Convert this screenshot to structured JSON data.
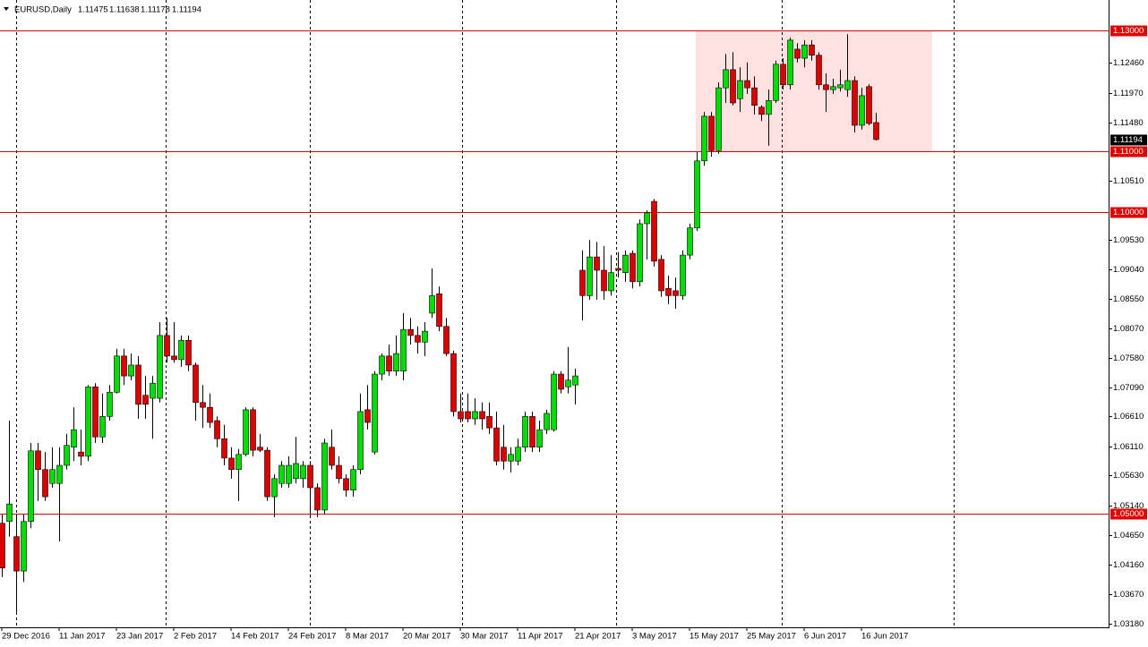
{
  "chart_data": {
    "type": "candlestick",
    "title": "EURUSD,Daily",
    "categories": [
      "29 Dec 2016",
      null,
      null,
      null,
      null,
      null,
      null,
      null,
      "11 Jan 2017",
      null,
      null,
      null,
      null,
      null,
      null,
      null,
      "23 Jan 2017",
      null,
      null,
      null,
      null,
      null,
      null,
      null,
      "2 Feb 2017",
      null,
      null,
      null,
      null,
      null,
      null,
      null,
      "14 Feb 2017",
      null,
      null,
      null,
      null,
      null,
      null,
      null,
      "24 Feb 2017",
      null,
      null,
      null,
      null,
      null,
      null,
      null,
      "8 Mar 2017",
      null,
      null,
      null,
      null,
      null,
      null,
      null,
      "20 Mar 2017",
      null,
      null,
      null,
      null,
      null,
      null,
      null,
      "30 Mar 2017",
      null,
      null,
      null,
      null,
      null,
      null,
      null,
      "11 Apr 2017",
      null,
      null,
      null,
      null,
      null,
      null,
      null,
      "21 Apr 2017",
      null,
      null,
      null,
      null,
      null,
      null,
      null,
      "3 May 2017",
      null,
      null,
      null,
      null,
      null,
      null,
      null,
      "15 May 2017",
      null,
      null,
      null,
      null,
      null,
      null,
      null,
      "25 May 2017",
      null,
      null,
      null,
      null,
      null,
      null,
      null,
      "6 Jun 2017",
      null,
      null,
      null,
      null,
      null,
      null,
      null,
      "16 Jun 2017",
      null,
      null
    ],
    "open": [
      1.0484,
      1.0487,
      1.0462,
      1.0405,
      1.0487,
      1.0604,
      1.0573,
      1.055,
      1.055,
      1.058,
      1.061,
      1.0602,
      1.0595,
      1.071,
      1.0627,
      1.0661,
      1.0701,
      1.0761,
      1.0728,
      1.0746,
      1.0696,
      1.0691,
      1.0691,
      1.0795,
      1.0761,
      1.0755,
      1.0787,
      1.0746,
      1.0684,
      1.0676,
      1.0654,
      1.0624,
      1.0592,
      1.0573,
      1.0598,
      1.0672,
      1.061,
      1.0605,
      1.0528,
      1.055,
      1.055,
      1.0558,
      1.0558,
      1.058,
      1.0543,
      1.0506,
      1.061,
      1.058,
      1.0558,
      1.0539,
      1.0573,
      1.0672,
      1.0602,
      1.0731,
      1.0761,
      1.0736,
      1.0736,
      1.0805,
      1.0795,
      1.0784,
      1.0832,
      1.0864,
      1.081,
      1.0765,
      1.0669,
      1.0669,
      1.0657,
      1.0669,
      1.0661,
      1.0642,
      1.061,
      1.0587,
      1.0587,
      1.061,
      1.0661,
      1.061,
      1.0639,
      1.0639,
      1.0731,
      1.071,
      1.0713,
      1.0903,
      1.0861,
      1.0925,
      1.0903,
      1.0869,
      1.0906,
      1.0899,
      1.0931,
      1.0884,
      1.098,
      1.1017,
      1.0921,
      1.0873,
      1.0869,
      1.0861,
      1.0928,
      1.0973,
      1.1084,
      1.1158,
      1.1101,
      1.1205,
      1.1235,
      1.1187,
      1.1217,
      1.1205,
      1.1173,
      1.1161,
      1.1184,
      1.1244,
      1.121,
      1.1269,
      1.1254,
      1.1276,
      1.1259,
      1.121,
      1.1202,
      1.1205,
      1.1202,
      1.1217,
      1.1143,
      1.1207,
      1.11475
    ],
    "high": [
      1.0499,
      1.0654,
      1.0499,
      1.0499,
      1.0617,
      1.0617,
      1.0602,
      1.061,
      1.061,
      1.0632,
      1.0676,
      1.0639,
      1.0713,
      1.0716,
      1.0699,
      1.0713,
      1.0773,
      1.0773,
      1.0765,
      1.0761,
      1.0728,
      1.0728,
      1.0817,
      1.0824,
      1.0817,
      1.0795,
      1.0795,
      1.075,
      1.0713,
      1.0699,
      1.0661,
      1.0647,
      1.061,
      1.0607,
      1.0676,
      1.0676,
      1.0632,
      1.061,
      1.0565,
      1.0587,
      1.0595,
      1.0627,
      1.0587,
      1.0587,
      1.055,
      1.0624,
      1.0639,
      1.0595,
      1.0565,
      1.058,
      1.0699,
      1.0713,
      1.0736,
      1.0765,
      1.078,
      1.0795,
      1.0832,
      1.0824,
      1.081,
      1.0817,
      1.0906,
      1.0876,
      1.0824,
      1.077,
      1.0699,
      1.0699,
      1.0691,
      1.0684,
      1.0684,
      1.0669,
      1.0647,
      1.061,
      1.0624,
      1.0669,
      1.0669,
      1.0654,
      1.0672,
      1.0736,
      1.0736,
      1.0776,
      1.074,
      1.0936,
      1.0953,
      1.095,
      1.0943,
      1.0928,
      1.0933,
      1.0936,
      1.0936,
      1.0987,
      1.1002,
      1.1021,
      1.0928,
      1.0894,
      1.0891,
      1.0936,
      1.098,
      1.1099,
      1.1165,
      1.1165,
      1.1214,
      1.1261,
      1.1264,
      1.1239,
      1.1247,
      1.1224,
      1.1176,
      1.1202,
      1.125,
      1.1254,
      1.1288,
      1.1279,
      1.1284,
      1.1284,
      1.1264,
      1.1229,
      1.122,
      1.1235,
      1.1294,
      1.1224,
      1.1205,
      1.1211,
      1.11638
    ],
    "low": [
      1.0395,
      1.0462,
      1.0336,
      1.0387,
      1.0476,
      1.0521,
      1.0521,
      1.0543,
      1.0454,
      1.0573,
      1.0587,
      1.058,
      1.0587,
      1.0617,
      1.0617,
      1.0654,
      1.0699,
      1.0713,
      1.0721,
      1.0657,
      1.0657,
      1.0624,
      1.0684,
      1.075,
      1.075,
      1.0743,
      1.0736,
      1.0654,
      1.0642,
      1.0642,
      1.061,
      1.058,
      1.0558,
      1.0521,
      1.0595,
      1.0595,
      1.0602,
      1.0521,
      1.0494,
      1.0543,
      1.0543,
      1.055,
      1.0543,
      1.0494,
      1.0494,
      1.0499,
      1.0573,
      1.055,
      1.0528,
      1.0528,
      1.0565,
      1.0639,
      1.0598,
      1.0721,
      1.0728,
      1.0728,
      1.0721,
      1.078,
      1.0765,
      1.0761,
      1.0824,
      1.0802,
      1.0761,
      1.0661,
      1.0651,
      1.0651,
      1.0647,
      1.0639,
      1.0632,
      1.058,
      1.0573,
      1.0568,
      1.058,
      1.0602,
      1.0602,
      1.0602,
      1.0632,
      1.0636,
      1.0699,
      1.0699,
      1.0681,
      1.082,
      1.0854,
      1.0854,
      1.0854,
      1.0861,
      1.0891,
      1.0884,
      1.0873,
      1.0876,
      1.0921,
      1.0909,
      1.0859,
      1.0847,
      1.0839,
      1.0854,
      1.0921,
      1.0968,
      1.1076,
      1.1091,
      1.1096,
      1.118,
      1.1176,
      1.1165,
      1.1195,
      1.1161,
      1.115,
      1.1109,
      1.118,
      1.1202,
      1.1202,
      1.1247,
      1.1239,
      1.125,
      1.1202,
      1.1165,
      1.1195,
      1.1199,
      1.119,
      1.1131,
      1.1136,
      1.1143,
      1.11178
    ],
    "close": [
      1.041,
      1.0516,
      1.0405,
      1.0487,
      1.0604,
      1.0573,
      1.0528,
      1.0573,
      1.058,
      1.0613,
      1.0639,
      1.0595,
      1.071,
      1.0627,
      1.0661,
      1.0701,
      1.0761,
      1.0728,
      1.0746,
      1.0681,
      1.0681,
      1.0716,
      1.0795,
      1.0761,
      1.0755,
      1.0787,
      1.0746,
      1.0684,
      1.0676,
      1.0651,
      1.0624,
      1.0592,
      1.0573,
      1.0598,
      1.0672,
      1.0605,
      1.0605,
      1.0528,
      1.0558,
      1.058,
      1.058,
      1.0583,
      1.058,
      1.0543,
      1.0506,
      1.0617,
      1.058,
      1.0558,
      1.0539,
      1.0573,
      1.0669,
      1.0651,
      1.0731,
      1.0761,
      1.0736,
      1.0765,
      1.0805,
      1.0795,
      1.0784,
      1.0802,
      1.0861,
      1.081,
      1.0765,
      1.0669,
      1.0657,
      1.0657,
      1.0669,
      1.0657,
      1.0642,
      1.0587,
      1.0587,
      1.0598,
      1.061,
      1.0661,
      1.061,
      1.0639,
      1.0666,
      1.0731,
      1.0706,
      1.0721,
      1.0728,
      1.0861,
      1.0925,
      1.0903,
      1.0869,
      1.0899,
      1.0903,
      1.0928,
      1.0884,
      1.098,
      1.0998,
      1.0918,
      1.0869,
      1.0861,
      1.0861,
      1.0928,
      1.0973,
      1.1084,
      1.1158,
      1.1101,
      1.1205,
      1.1235,
      1.118,
      1.1217,
      1.1205,
      1.1176,
      1.1161,
      1.1184,
      1.1244,
      1.121,
      1.1284,
      1.1254,
      1.1276,
      1.1259,
      1.121,
      1.1202,
      1.1207,
      1.121,
      1.1217,
      1.1143,
      1.1192,
      1.1146,
      1.11194
    ],
    "up_color": "#00dd00",
    "down_color": "#dd0000",
    "ylim": [
      1.03133,
      1.13504
    ],
    "yticks": [
      {
        "value": 1.1246,
        "label": "1.12460"
      },
      {
        "value": 1.1197,
        "label": "1.11970"
      },
      {
        "value": 1.1148,
        "label": "1.11480"
      },
      {
        "value": 1.1051,
        "label": "1.10510"
      },
      {
        "value": 1.0953,
        "label": "1.09530"
      },
      {
        "value": 1.0904,
        "label": "1.09040"
      },
      {
        "value": 1.0855,
        "label": "1.08550"
      },
      {
        "value": 1.0807,
        "label": "1.08070"
      },
      {
        "value": 1.0758,
        "label": "1.07580"
      },
      {
        "value": 1.0709,
        "label": "1.07090"
      },
      {
        "value": 1.0661,
        "label": "1.06610"
      },
      {
        "value": 1.0611,
        "label": "1.06110"
      },
      {
        "value": 1.0563,
        "label": "1.05630"
      },
      {
        "value": 1.0514,
        "label": "1.05140"
      },
      {
        "value": 1.0465,
        "label": "1.04650"
      },
      {
        "value": 1.0416,
        "label": "1.04160"
      },
      {
        "value": 1.0367,
        "label": "1.03670"
      },
      {
        "value": 1.0318,
        "label": "1.03180"
      }
    ],
    "levels": [
      {
        "value": 1.13,
        "label": "1.13000"
      },
      {
        "value": 1.11,
        "label": "1.11000"
      },
      {
        "value": 1.1,
        "label": "1.10000"
      },
      {
        "value": 1.05,
        "label": "1.05000"
      }
    ],
    "level_color": "#e00000",
    "zone": {
      "from": 1.11,
      "to": 1.13,
      "color": "#ffe1e1"
    }
  }
}
